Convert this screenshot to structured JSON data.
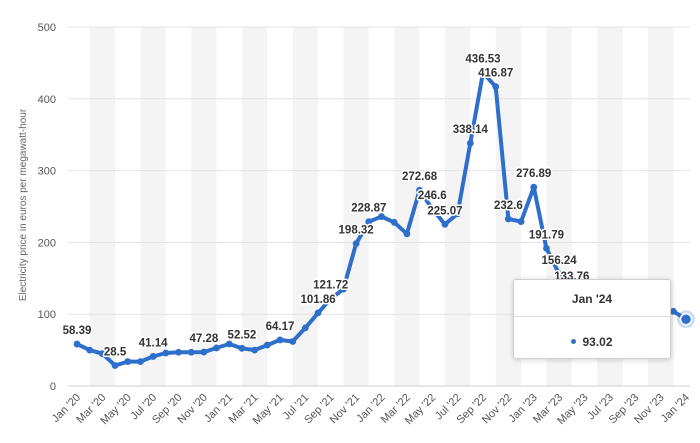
{
  "chart_data": {
    "type": "line",
    "title": "",
    "xlabel": "",
    "ylabel": "Electricity price in euros per megawatt-hour",
    "ylim": [
      0,
      500
    ],
    "yticks": [
      0,
      100,
      200,
      300,
      400,
      500
    ],
    "grid": "horizontal lines, alternating vertical bands",
    "line_color": "#2e6fcc",
    "tick_labels": [
      "Jan '20",
      "Mar '20",
      "May '20",
      "Jul '20",
      "Sep '20",
      "Nov '20",
      "Jan '21",
      "Mar '21",
      "May '21",
      "Jul '21",
      "Sep '21",
      "Nov '21",
      "Jan '22",
      "Mar '22",
      "May '22",
      "Jul '22",
      "Sep '22",
      "Nov '22",
      "Jan '23",
      "Mar '23",
      "May '23",
      "Jul '23",
      "Sep '23",
      "Nov '23",
      "Jan '24"
    ],
    "series": [
      {
        "values": [
          58.39,
          50,
          45,
          28.5,
          34,
          34,
          41.14,
          46,
          47,
          47,
          47.28,
          53,
          58.5,
          52.52,
          50,
          57,
          64.17,
          62,
          81,
          101.86,
          121.72,
          135,
          198.32,
          228.87,
          236,
          228,
          212,
          272.68,
          246.6,
          225.07,
          240,
          338.14,
          436.53,
          416.87,
          232.6,
          229,
          276.89,
          191.79,
          156.24,
          133.76,
          120,
          110,
          105,
          102,
          108,
          115,
          108,
          104,
          93.02
        ],
        "data_labels": [
          {
            "index": 0,
            "text": "58.39"
          },
          {
            "index": 3,
            "text": "28.5"
          },
          {
            "index": 6,
            "text": "41.14"
          },
          {
            "index": 10,
            "text": "47.28"
          },
          {
            "index": 13,
            "text": "52.52"
          },
          {
            "index": 16,
            "text": "64.17"
          },
          {
            "index": 19,
            "text": "101.86"
          },
          {
            "index": 20,
            "text": "121.72"
          },
          {
            "index": 22,
            "text": "198.32"
          },
          {
            "index": 23,
            "text": "228.87"
          },
          {
            "index": 27,
            "text": "272.68"
          },
          {
            "index": 28,
            "text": "246.6"
          },
          {
            "index": 29,
            "text": "225.07"
          },
          {
            "index": 31,
            "text": "338.14"
          },
          {
            "index": 32,
            "text": "436.53"
          },
          {
            "index": 33,
            "text": "416.87"
          },
          {
            "index": 34,
            "text": "232.6"
          },
          {
            "index": 36,
            "text": "276.89"
          },
          {
            "index": 37,
            "text": "191.79"
          },
          {
            "index": 38,
            "text": "156.24"
          },
          {
            "index": 39,
            "text": "133.76"
          }
        ]
      }
    ],
    "tooltip": {
      "title": "Jan '24",
      "value": "93.02",
      "index": 48
    }
  }
}
